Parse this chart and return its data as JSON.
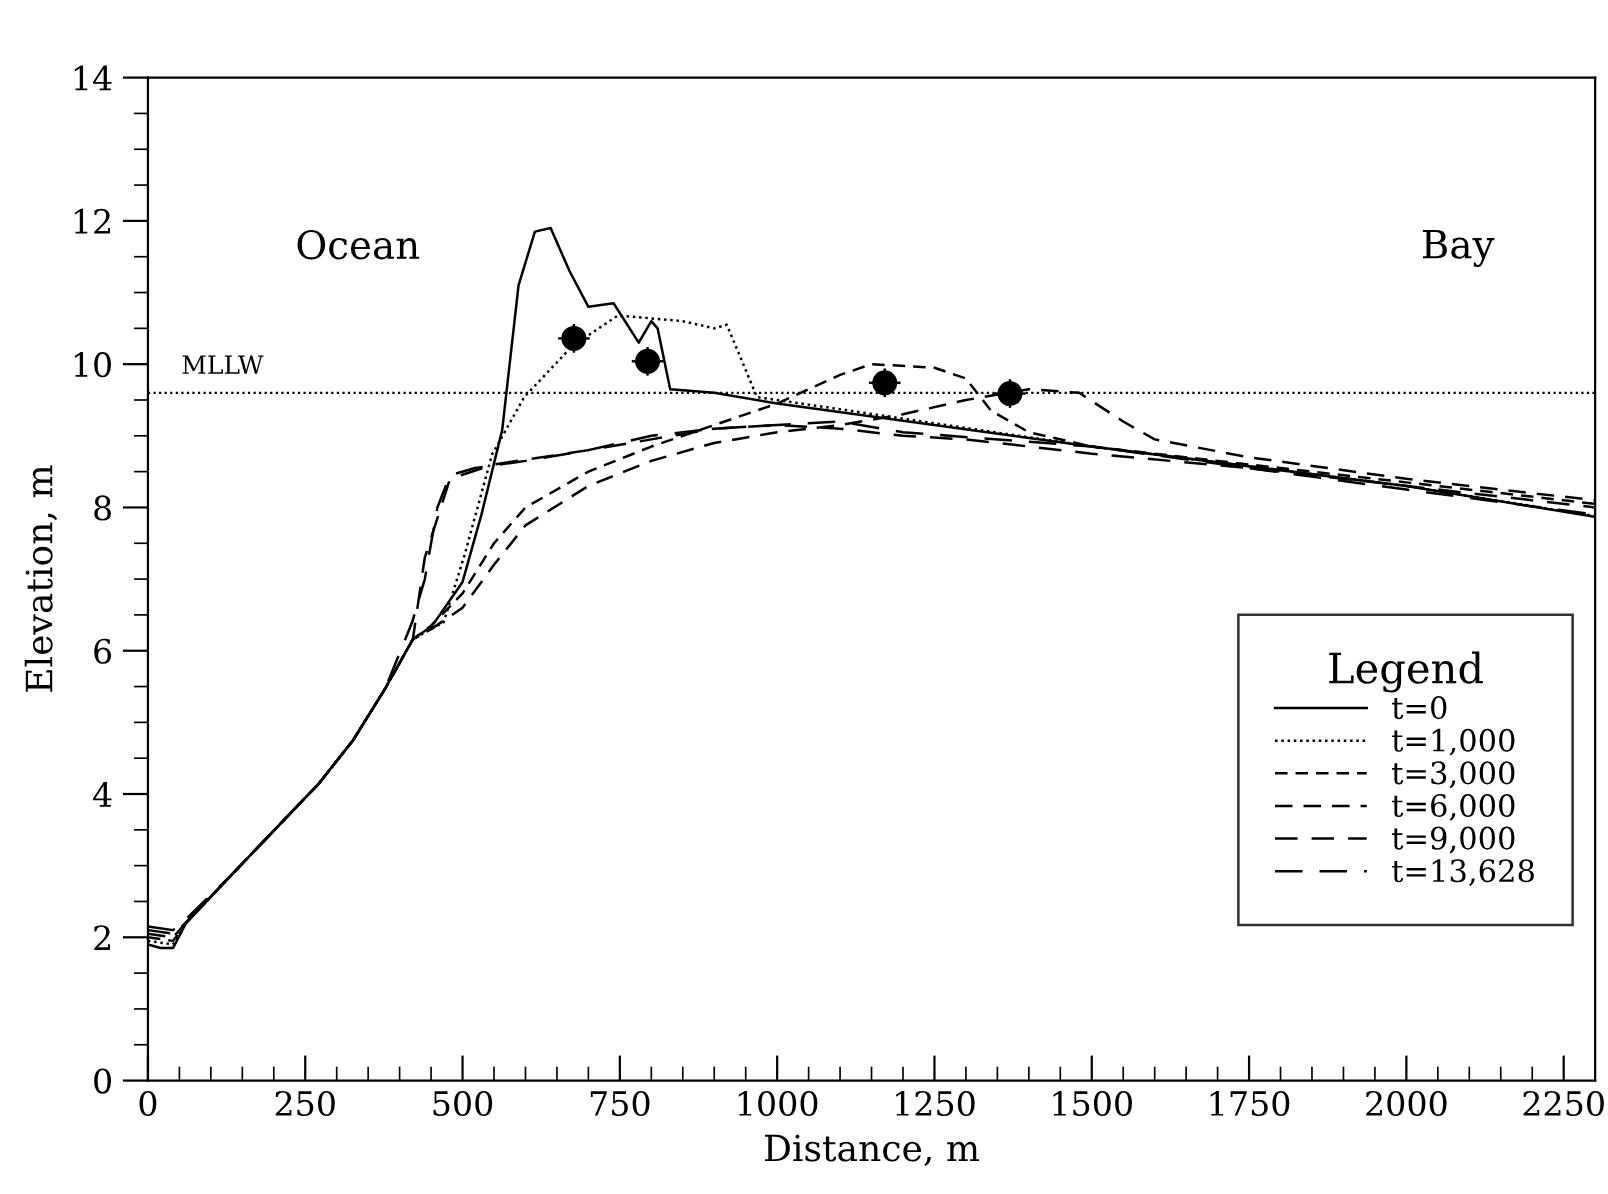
{
  "chart_data": {
    "type": "line",
    "xlabel": "Distance, m",
    "ylabel": "Elevation, m",
    "legend_title": "Legend",
    "legend": "bottom right",
    "grid": false,
    "marker": "none",
    "xlim": [
      0,
      2300
    ],
    "xticks": [
      0,
      250,
      500,
      750,
      1000,
      1250,
      1500,
      1750,
      2000,
      2250
    ],
    "ylim": [
      0,
      14
    ],
    "yticks": [
      0,
      2,
      4,
      6,
      8,
      10,
      12,
      14
    ],
    "ref_lines": [
      {
        "axis": "y",
        "value": 9.6,
        "label": "MLLW",
        "line_style": "dotted",
        "color": "#000000"
      }
    ],
    "annotations": [
      "Ocean",
      "Bay"
    ],
    "series": [
      {
        "name": "t=0",
        "color": "#000000",
        "line_style": "solid",
        "x": [
          0,
          20,
          40,
          60,
          136,
          272,
          326,
          377,
          421,
          452,
          500,
          530,
          563,
          589,
          615,
          640,
          670,
          700,
          740,
          780,
          800,
          810,
          830,
          900,
          1000,
          1500,
          2000,
          2300
        ],
        "values": [
          1.9,
          1.85,
          1.85,
          2.19,
          2.9,
          4.15,
          4.75,
          5.47,
          6.16,
          6.35,
          6.96,
          7.9,
          9.08,
          11.1,
          11.85,
          11.9,
          11.3,
          10.8,
          10.85,
          10.3,
          10.6,
          10.5,
          9.65,
          9.6,
          9.45,
          8.85,
          8.3,
          7.87
        ]
      },
      {
        "name": "t=1,000",
        "color": "#000000",
        "line_style": "dotted",
        "x": [
          0,
          40,
          60,
          136,
          272,
          326,
          377,
          421,
          470,
          503,
          547,
          598,
          674,
          747,
          850,
          900,
          920,
          968,
          1000,
          1500,
          2000,
          2300
        ],
        "values": [
          1.95,
          1.9,
          2.2,
          2.9,
          4.15,
          4.75,
          5.47,
          6.16,
          6.4,
          7.33,
          8.74,
          9.54,
          10.25,
          10.68,
          10.6,
          10.5,
          10.55,
          9.54,
          9.5,
          8.85,
          8.3,
          7.88
        ]
      },
      {
        "name": "t=3,000",
        "color": "#000000",
        "line_style": "dashed",
        "x": [
          0,
          40,
          60,
          136,
          272,
          326,
          377,
          421,
          450,
          500,
          550,
          600,
          700,
          800,
          900,
          1000,
          1100,
          1150,
          1250,
          1300,
          1340,
          1400,
          1500,
          1750,
          2000,
          2300
        ],
        "values": [
          2.0,
          1.95,
          2.2,
          2.9,
          4.15,
          4.75,
          5.47,
          6.16,
          6.35,
          6.8,
          7.5,
          8.0,
          8.5,
          8.85,
          9.15,
          9.45,
          9.85,
          10.0,
          9.95,
          9.8,
          9.35,
          9.05,
          8.85,
          8.6,
          8.35,
          8.05
        ]
      },
      {
        "name": "t=6,000",
        "color": "#000000",
        "line_style": "dashed",
        "x": [
          0,
          40,
          60,
          136,
          272,
          326,
          377,
          421,
          450,
          500,
          550,
          600,
          700,
          800,
          900,
          1000,
          1100,
          1200,
          1300,
          1400,
          1480,
          1550,
          1600,
          1750,
          2000,
          2300
        ],
        "values": [
          2.05,
          2.0,
          2.2,
          2.9,
          4.15,
          4.75,
          5.47,
          6.16,
          6.3,
          6.6,
          7.2,
          7.75,
          8.3,
          8.65,
          8.9,
          9.05,
          9.15,
          9.3,
          9.5,
          9.65,
          9.6,
          9.2,
          8.95,
          8.7,
          8.4,
          8.1
        ]
      },
      {
        "name": "t=9,000",
        "color": "#000000",
        "line_style": "dashed",
        "x": [
          0,
          40,
          60,
          136,
          272,
          326,
          377,
          421,
          440,
          480,
          550,
          700,
          800,
          900,
          1000,
          1100,
          1200,
          1300,
          1500,
          1750,
          2000,
          2300
        ],
        "values": [
          2.1,
          2.05,
          2.2,
          2.9,
          4.15,
          4.75,
          5.47,
          6.16,
          7.3,
          8.4,
          8.6,
          8.8,
          8.95,
          9.1,
          9.15,
          9.1,
          9.0,
          8.95,
          8.75,
          8.55,
          8.3,
          8.0
        ]
      },
      {
        "name": "t=13,628",
        "color": "#000000",
        "line_style": "dashed",
        "x": [
          0,
          40,
          60,
          136,
          272,
          326,
          377,
          420,
          440,
          460,
          480,
          520,
          600,
          700,
          800,
          900,
          1000,
          1100,
          1200,
          1500,
          1750,
          2000,
          2300
        ],
        "values": [
          2.15,
          2.1,
          2.25,
          2.9,
          4.15,
          4.75,
          5.47,
          6.4,
          7.0,
          8.0,
          8.45,
          8.55,
          8.65,
          8.8,
          9.0,
          9.1,
          9.15,
          9.2,
          9.05,
          8.85,
          8.55,
          8.25,
          7.9
        ]
      },
      {
        "type": "scatter",
        "color": "#000000",
        "marker": "circle",
        "x": [
          677,
          794,
          1171,
          1370
        ],
        "values": [
          10.36,
          10.04,
          9.74,
          9.59
        ],
        "errors": [
          0.2,
          0.2,
          0.2,
          0.2
        ],
        "xerrors": [
          25,
          25,
          25,
          25
        ]
      }
    ]
  }
}
